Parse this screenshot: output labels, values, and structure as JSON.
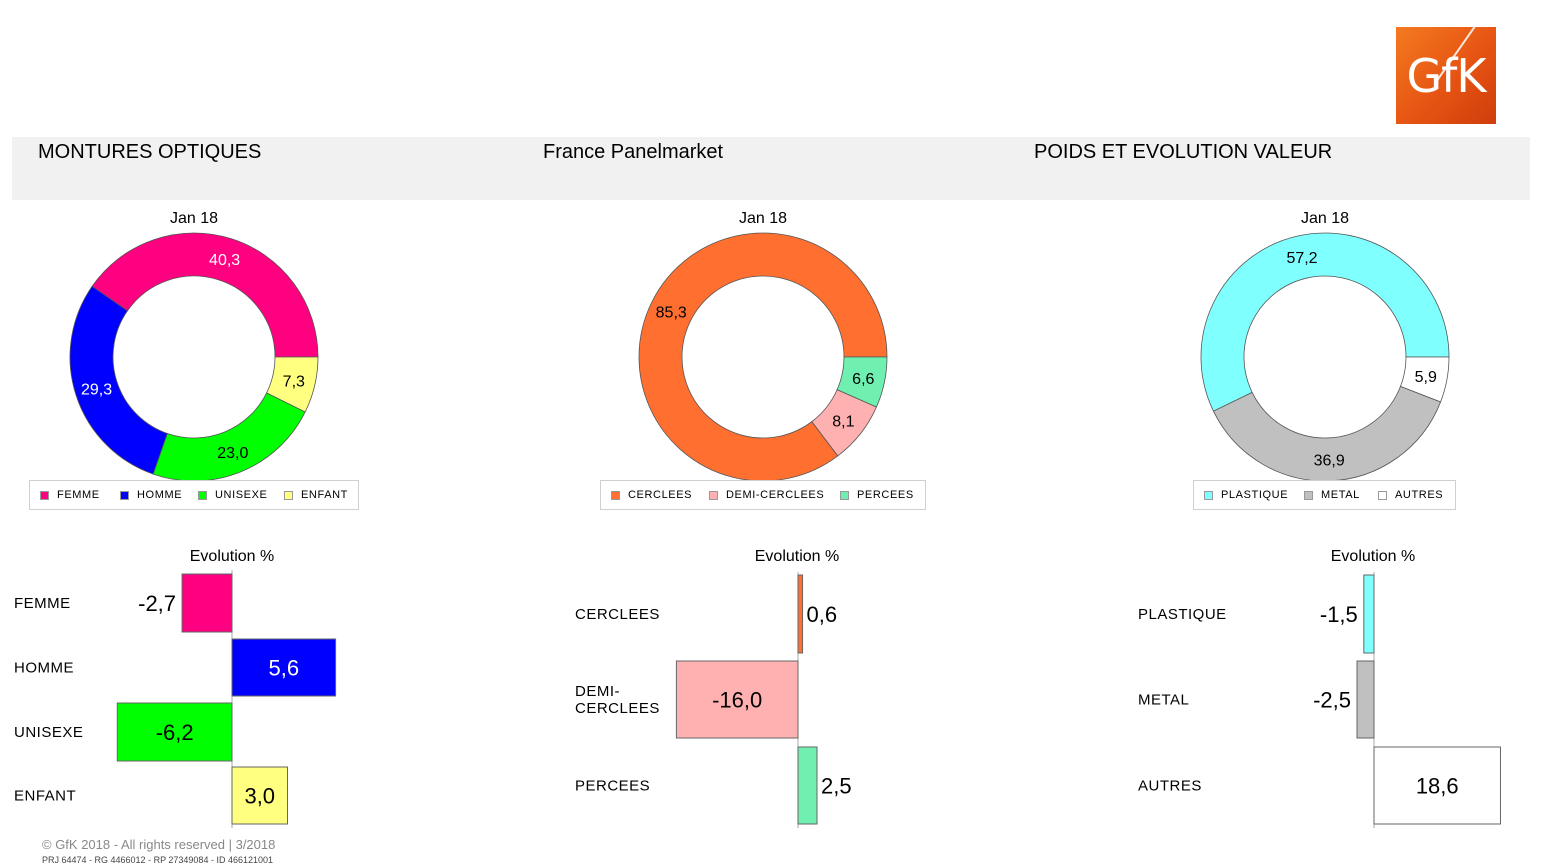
{
  "header": {
    "left_title": "MONTURES OPTIQUES",
    "center_title": "France Panelmarket",
    "right_title": "POIDS ET EVOLUTION VALEUR"
  },
  "logo": {
    "text": "GfK"
  },
  "footer": {
    "copyright": "© GfK 2018 - All rights reserved | 3/2018",
    "ids": "PRJ 64474 - RG 4466012 - RP 27349084 - ID 466121001"
  },
  "chart_data": [
    {
      "type": "pie",
      "title": "Jan 18",
      "categories": [
        "FEMME",
        "HOMME",
        "UNISEXE",
        "ENFANT"
      ],
      "values": [
        40.3,
        29.3,
        23.0,
        7.3
      ],
      "labels": [
        "40,3",
        "29,3",
        "23,0",
        "7,3"
      ],
      "colors": [
        "#ff0080",
        "#0000ff",
        "#00ff00",
        "#ffff80"
      ],
      "label_colors": [
        "#ffffff",
        "#ffffff",
        "#000000",
        "#000000"
      ],
      "legend": "bottom"
    },
    {
      "type": "pie",
      "title": "Jan 18",
      "categories": [
        "CERCLEES",
        "DEMI-CERCLEES",
        "PERCEES"
      ],
      "values": [
        85.3,
        8.1,
        6.6
      ],
      "labels": [
        "85,3",
        "8,1",
        "6,6"
      ],
      "colors": [
        "#ff7030",
        "#ffb0b0",
        "#70f0b0"
      ],
      "label_colors": [
        "#000000",
        "#000000",
        "#000000"
      ],
      "legend": "bottom"
    },
    {
      "type": "pie",
      "title": "Jan 18",
      "categories": [
        "PLASTIQUE",
        "METAL",
        "AUTRES"
      ],
      "values": [
        57.2,
        36.9,
        5.9
      ],
      "labels": [
        "57,2",
        "36,9",
        "5,9"
      ],
      "colors": [
        "#80ffff",
        "#c0c0c0",
        "#ffffff"
      ],
      "label_colors": [
        "#000000",
        "#000000",
        "#000000"
      ],
      "legend": "bottom"
    },
    {
      "type": "bar",
      "orientation": "horizontal",
      "title": "Evolution %",
      "categories": [
        "FEMME",
        "HOMME",
        "UNISEXE",
        "ENFANT"
      ],
      "values": [
        -2.7,
        5.6,
        -6.2,
        3.0
      ],
      "labels": [
        "-2,7",
        "5,6",
        "-6,2",
        "3,0"
      ],
      "colors": [
        "#ff0080",
        "#0000ff",
        "#00ff00",
        "#ffff80"
      ],
      "label_colors": [
        "#ffffff",
        "#ffffff",
        "#000000",
        "#000000"
      ]
    },
    {
      "type": "bar",
      "orientation": "horizontal",
      "title": "Evolution %",
      "categories": [
        "CERCLEES",
        "DEMI-\nCERCLEES",
        "PERCEES"
      ],
      "values": [
        0.6,
        -16.0,
        2.5
      ],
      "labels": [
        "0,6",
        "-16,0",
        "2,5"
      ],
      "colors": [
        "#ff7030",
        "#ffb0b0",
        "#70f0b0"
      ],
      "label_colors": [
        "#000000",
        "#000000",
        "#000000"
      ]
    },
    {
      "type": "bar",
      "orientation": "horizontal",
      "title": "Evolution %",
      "categories": [
        "PLASTIQUE",
        "METAL",
        "AUTRES"
      ],
      "values": [
        -1.5,
        -2.5,
        18.6
      ],
      "labels": [
        "-1,5",
        "-2,5",
        "18,6"
      ],
      "colors": [
        "#80ffff",
        "#c0c0c0",
        "#ffffff"
      ],
      "label_colors": [
        "#000000",
        "#000000",
        "#000000"
      ]
    }
  ]
}
